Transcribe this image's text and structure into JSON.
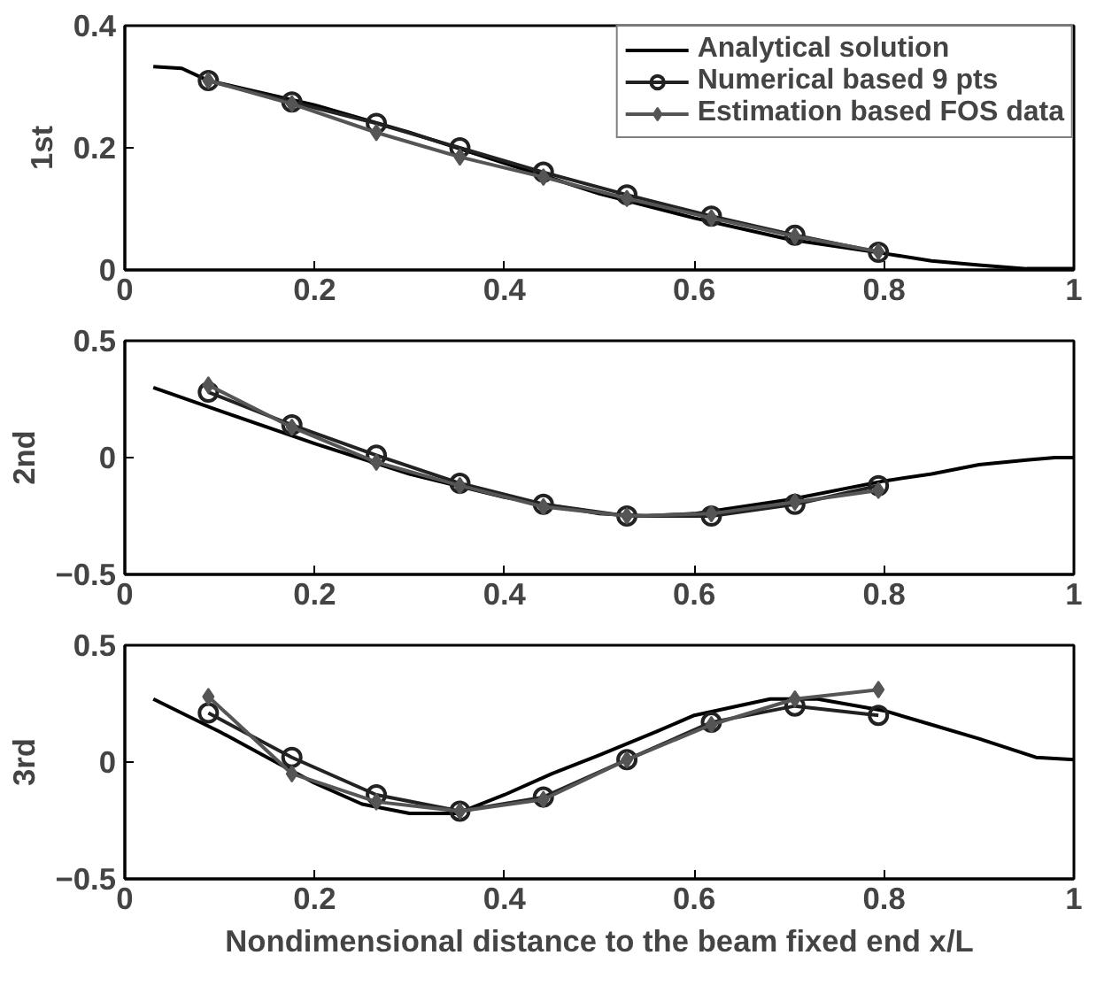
{
  "chart_data": [
    {
      "type": "line",
      "ylabel": "1st",
      "xlim": [
        0,
        1
      ],
      "ylim": [
        0,
        0.4
      ],
      "xticks": [
        0,
        0.2,
        0.4,
        0.6,
        0.8,
        1
      ],
      "yticks": [
        0,
        0.2,
        0.4
      ],
      "grid": false,
      "legend": "top right",
      "series": [
        {
          "name": "Analytical solution",
          "color": "#000000",
          "marker": "none",
          "x": [
            0.03,
            0.06,
            0.088,
            0.2,
            0.3,
            0.4,
            0.5,
            0.6,
            0.7,
            0.8,
            0.85,
            0.9,
            0.95,
            1.0
          ],
          "values": [
            0.333,
            0.33,
            0.31,
            0.27,
            0.225,
            0.175,
            0.125,
            0.085,
            0.05,
            0.027,
            0.015,
            0.008,
            0.002,
            0.002
          ]
        },
        {
          "name": "Numerical based 9 pts",
          "color": "#222222",
          "marker": "circle",
          "x": [
            0.088,
            0.176,
            0.265,
            0.353,
            0.441,
            0.529,
            0.618,
            0.706,
            0.794
          ],
          "values": [
            0.31,
            0.275,
            0.24,
            0.2,
            0.16,
            0.123,
            0.088,
            0.057,
            0.029
          ]
        },
        {
          "name": "Estimation based FOS data",
          "color": "#555555",
          "marker": "diamond",
          "x": [
            0.088,
            0.176,
            0.265,
            0.353,
            0.441,
            0.529,
            0.618,
            0.706,
            0.794
          ],
          "values": [
            0.31,
            0.272,
            0.225,
            0.185,
            0.152,
            0.117,
            0.085,
            0.055,
            0.03
          ]
        }
      ]
    },
    {
      "type": "line",
      "ylabel": "2nd",
      "xlim": [
        0,
        1
      ],
      "ylim": [
        -0.5,
        0.5
      ],
      "xticks": [
        0,
        0.2,
        0.4,
        0.6,
        0.8,
        1
      ],
      "yticks": [
        {
          "value": -0.5,
          "label": "−0.5"
        },
        0,
        0.5
      ],
      "grid": false,
      "series": [
        {
          "color": "#000000",
          "marker": "none",
          "x": [
            0.03,
            0.1,
            0.2,
            0.3,
            0.4,
            0.5,
            0.55,
            0.6,
            0.7,
            0.8,
            0.85,
            0.9,
            0.95,
            0.98,
            1.0
          ],
          "values": [
            0.3,
            0.2,
            0.06,
            -0.07,
            -0.17,
            -0.24,
            -0.25,
            -0.24,
            -0.18,
            -0.1,
            -0.07,
            -0.03,
            -0.01,
            0,
            0
          ]
        },
        {
          "color": "#222222",
          "marker": "circle",
          "x": [
            0.088,
            0.176,
            0.265,
            0.353,
            0.441,
            0.529,
            0.618,
            0.706,
            0.794
          ],
          "values": [
            0.28,
            0.14,
            0.01,
            -0.11,
            -0.2,
            -0.25,
            -0.25,
            -0.2,
            -0.12
          ]
        },
        {
          "color": "#555555",
          "marker": "diamond",
          "x": [
            0.088,
            0.176,
            0.265,
            0.353,
            0.441,
            0.529,
            0.618,
            0.706,
            0.794
          ],
          "values": [
            0.31,
            0.13,
            -0.02,
            -0.12,
            -0.21,
            -0.25,
            -0.24,
            -0.19,
            -0.14
          ]
        }
      ]
    },
    {
      "type": "line",
      "ylabel": "3rd",
      "xlabel": "Nondimensional distance to the beam fixed end x/L",
      "xlim": [
        0,
        1
      ],
      "ylim": [
        -0.5,
        0.5
      ],
      "xticks": [
        0,
        0.2,
        0.4,
        0.6,
        0.8,
        1
      ],
      "yticks": [
        {
          "value": -0.5,
          "label": "−0.5"
        },
        0,
        0.5
      ],
      "grid": false,
      "series": [
        {
          "color": "#000000",
          "marker": "none",
          "x": [
            0.03,
            0.1,
            0.15,
            0.2,
            0.25,
            0.3,
            0.35,
            0.4,
            0.45,
            0.5,
            0.56,
            0.6,
            0.68,
            0.73,
            0.8,
            0.85,
            0.9,
            0.96,
            1.0
          ],
          "values": [
            0.27,
            0.13,
            0.02,
            -0.09,
            -0.18,
            -0.22,
            -0.22,
            -0.14,
            -0.05,
            0.03,
            0.13,
            0.2,
            0.27,
            0.27,
            0.22,
            0.16,
            0.1,
            0.02,
            0.01
          ]
        },
        {
          "color": "#222222",
          "marker": "circle",
          "x": [
            0.088,
            0.176,
            0.265,
            0.353,
            0.441,
            0.529,
            0.618,
            0.706,
            0.794
          ],
          "values": [
            0.21,
            0.02,
            -0.14,
            -0.21,
            -0.15,
            0.01,
            0.17,
            0.24,
            0.2
          ]
        },
        {
          "color": "#555555",
          "marker": "diamond",
          "x": [
            0.088,
            0.176,
            0.265,
            0.353,
            0.441,
            0.529,
            0.618,
            0.706,
            0.794
          ],
          "values": [
            0.28,
            -0.05,
            -0.17,
            -0.21,
            -0.16,
            0.01,
            0.16,
            0.27,
            0.31
          ]
        }
      ]
    }
  ]
}
